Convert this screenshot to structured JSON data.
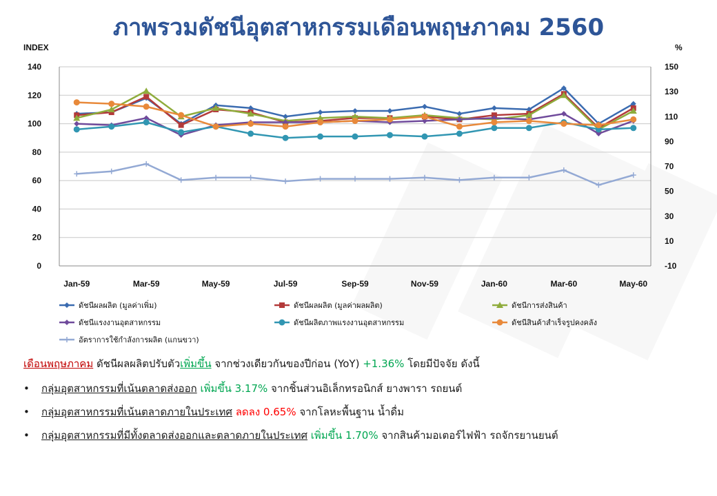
{
  "slide": {
    "title": "ภาพรวมดัชนีอุตสาหกรรมเดือนพฤษภาคม 2560"
  },
  "chart_data": {
    "type": "line",
    "ylabel": "INDEX",
    "y2label": "%",
    "ylim": [
      0,
      140
    ],
    "yticks": [
      0,
      20,
      40,
      60,
      80,
      100,
      120,
      140
    ],
    "y2lim": [
      -10,
      150
    ],
    "y2ticks": [
      -10,
      10,
      30,
      50,
      70,
      90,
      110,
      130,
      150
    ],
    "x": [
      "Jan-59",
      "Feb-59",
      "Mar-59",
      "Apr-59",
      "May-59",
      "Jun-59",
      "Jul-59",
      "Aug-59",
      "Sep-59",
      "Oct-59",
      "Nov-59",
      "Dec-59",
      "Jan-60",
      "Feb-60",
      "Mar-60",
      "Apr-60",
      "May-60"
    ],
    "x_tick_labels": [
      "Jan-59",
      "Mar-59",
      "May-59",
      "Jul-59",
      "Sep-59",
      "Nov-59",
      "Jan-60",
      "Mar-60",
      "May-60"
    ],
    "grid": true,
    "legend_position": "bottom",
    "series": [
      {
        "name": "ดัชนีผลผลิต (มูลค่าเพิ่ม)",
        "color": "#3a6bb0",
        "marker": "diamond",
        "axis": "left",
        "values": [
          107,
          108,
          118,
          100,
          113,
          111,
          105,
          108,
          109,
          109,
          112,
          107,
          111,
          110,
          125,
          100,
          114
        ]
      },
      {
        "name": "ดัชนีผลผลิต (มูลค่าผลผลิต)",
        "color": "#b33a3a",
        "marker": "square",
        "axis": "left",
        "values": [
          106,
          108,
          119,
          99,
          110,
          108,
          101,
          102,
          104,
          104,
          105,
          103,
          106,
          107,
          121,
          97,
          111
        ]
      },
      {
        "name": "ดัชนีการส่งสินค้า",
        "color": "#8fac3c",
        "marker": "triangle",
        "axis": "left",
        "values": [
          104,
          110,
          123,
          105,
          111,
          107,
          102,
          104,
          105,
          104,
          106,
          104,
          103,
          106,
          120,
          96,
          109
        ]
      },
      {
        "name": "ดัชนีแรงงานอุตสาหกรรม",
        "color": "#6f4a9b",
        "marker": "diamond",
        "axis": "left",
        "values": [
          100,
          99,
          104,
          92,
          99,
          101,
          101,
          101,
          102,
          101,
          102,
          103,
          104,
          103,
          107,
          93,
          102
        ]
      },
      {
        "name": "ดัชนีผลิตภาพแรงงานอุตสาหกรรม",
        "color": "#3196b2",
        "marker": "circle",
        "axis": "left",
        "values": [
          96,
          98,
          101,
          94,
          98,
          93,
          90,
          91,
          91,
          92,
          91,
          93,
          97,
          97,
          101,
          96,
          97
        ]
      },
      {
        "name": "ดัชนีสินค้าสำเร็จรูปคงคลัง",
        "color": "#e8893a",
        "marker": "circle",
        "axis": "left",
        "values": [
          115,
          114,
          112,
          106,
          98,
          100,
          98,
          101,
          102,
          103,
          105,
          98,
          101,
          102,
          100,
          99,
          103
        ]
      },
      {
        "name": "อัตราการใช้กำลังการผลิต (แกนขวา)",
        "color": "#93a9d4",
        "marker": "cross",
        "axis": "right",
        "values": [
          64,
          66,
          72,
          59,
          61,
          61,
          58,
          60,
          60,
          60,
          61,
          59,
          61,
          61,
          67,
          55,
          63
        ]
      }
    ]
  },
  "summary": {
    "month": "เดือนพฤษภาคม",
    "text1": " ดัชนีผลผลิตปรับตัว",
    "trend": "เพิ่มขึ้น",
    "text2": "  จากช่วงเดียวกันของปีก่อน (YoY) ",
    "value": "+1.36%",
    "text3": " โดยมีปัจจัย ดังนี้"
  },
  "bullets": [
    {
      "group": "กลุ่มอุตสาหกรรมที่เน้นตลาดส่งออก",
      "change": " เพิ่มขึ้น 3.17%",
      "dir": "up",
      "detail": " จากชิ้นส่วนอิเล็กทรอนิกส์ ยางพารา รถยนต์"
    },
    {
      "group": "กลุ่มอุตสาหกรรมที่เน้นตลาดภายในประเทศ",
      "change": " ลดลง 0.65%",
      "dir": "down",
      "detail": " จากโลหะพื้นฐาน น้ำดื่ม"
    },
    {
      "group": "กลุ่มอุตสาหกรรมที่มีทั้งตลาดส่งออกและตลาดภายในประเทศ",
      "change": " เพิ่มขึ้น 1.70%",
      "dir": "up",
      "detail": " จากสินค้ามอเตอร์ไฟฟ้า รถจักรยานยนต์"
    }
  ]
}
